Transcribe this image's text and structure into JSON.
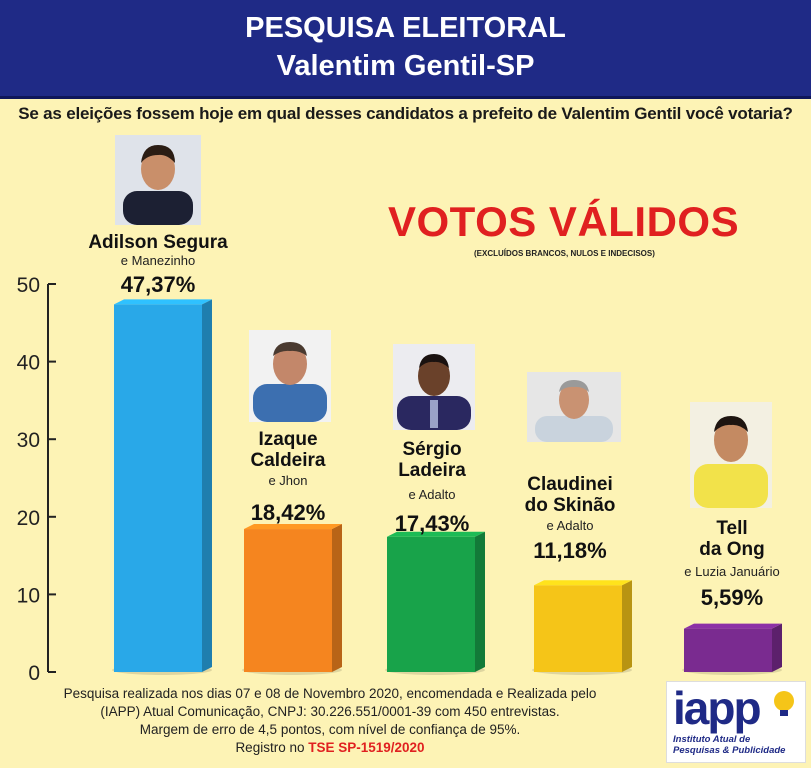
{
  "header": {
    "title_line1": "PESQUISA ELEITORAL",
    "title_line2": "Valentim Gentil-SP"
  },
  "question": "Se as eleições fossem hoje em qual desses candidatos a prefeito de Valentim Gentil você votaria?",
  "highlight": {
    "title": "VOTOS VÁLIDOS",
    "note": "(EXCLUÍDOS BRANCOS, NULOS E INDECISOS)"
  },
  "candidates": [
    {
      "name_line1": "Adilson Segura",
      "name_line2": "",
      "vice": "e Manezinho",
      "percent_label": "47,37%"
    },
    {
      "name_line1": "Izaque",
      "name_line2": "Caldeira",
      "vice": "e Jhon",
      "percent_label": "18,42%"
    },
    {
      "name_line1": "Sérgio",
      "name_line2": "Ladeira",
      "vice": "e Adalto",
      "percent_label": "17,43%"
    },
    {
      "name_line1": "Claudinei",
      "name_line2": "do Skinão",
      "vice": "e Adalto",
      "percent_label": "11,18%"
    },
    {
      "name_line1": "Tell",
      "name_line2": "da Ong",
      "vice": "e Luzia Januário",
      "percent_label": "5,59%"
    }
  ],
  "chart_data": {
    "type": "bar",
    "categories": [
      "Adilson Segura",
      "Izaque Caldeira",
      "Sérgio Ladeira",
      "Claudinei do Skinão",
      "Tell da Ong"
    ],
    "values": [
      47.37,
      18.42,
      17.43,
      11.18,
      5.59
    ],
    "colors": [
      "#29a8e8",
      "#f5851f",
      "#18a34a",
      "#f5c518",
      "#7a2b90"
    ],
    "ylim": [
      0,
      50
    ],
    "yticks": [
      "0",
      "10",
      "20",
      "30",
      "40",
      "50"
    ],
    "grid": false,
    "legend": "none"
  },
  "footer": {
    "line1": "Pesquisa  realizada nos dias 07 e 08 de Novembro 2020, encomendada e Realizada pelo",
    "line2": "(IAPP) Atual Comunicação, CNPJ: 30.226.551/0001-39 com 450 entrevistas.",
    "line3": "Margem de erro de 4,5 pontos, com nível de confiança de 95%.",
    "line4_prefix": "Registro no ",
    "line4_key": "TSE SP-1519/2020"
  },
  "logo": {
    "mark": "iapp",
    "sub_line1": "Instituto Atual de",
    "sub_line2": "Pesquisas & Publicidade"
  }
}
